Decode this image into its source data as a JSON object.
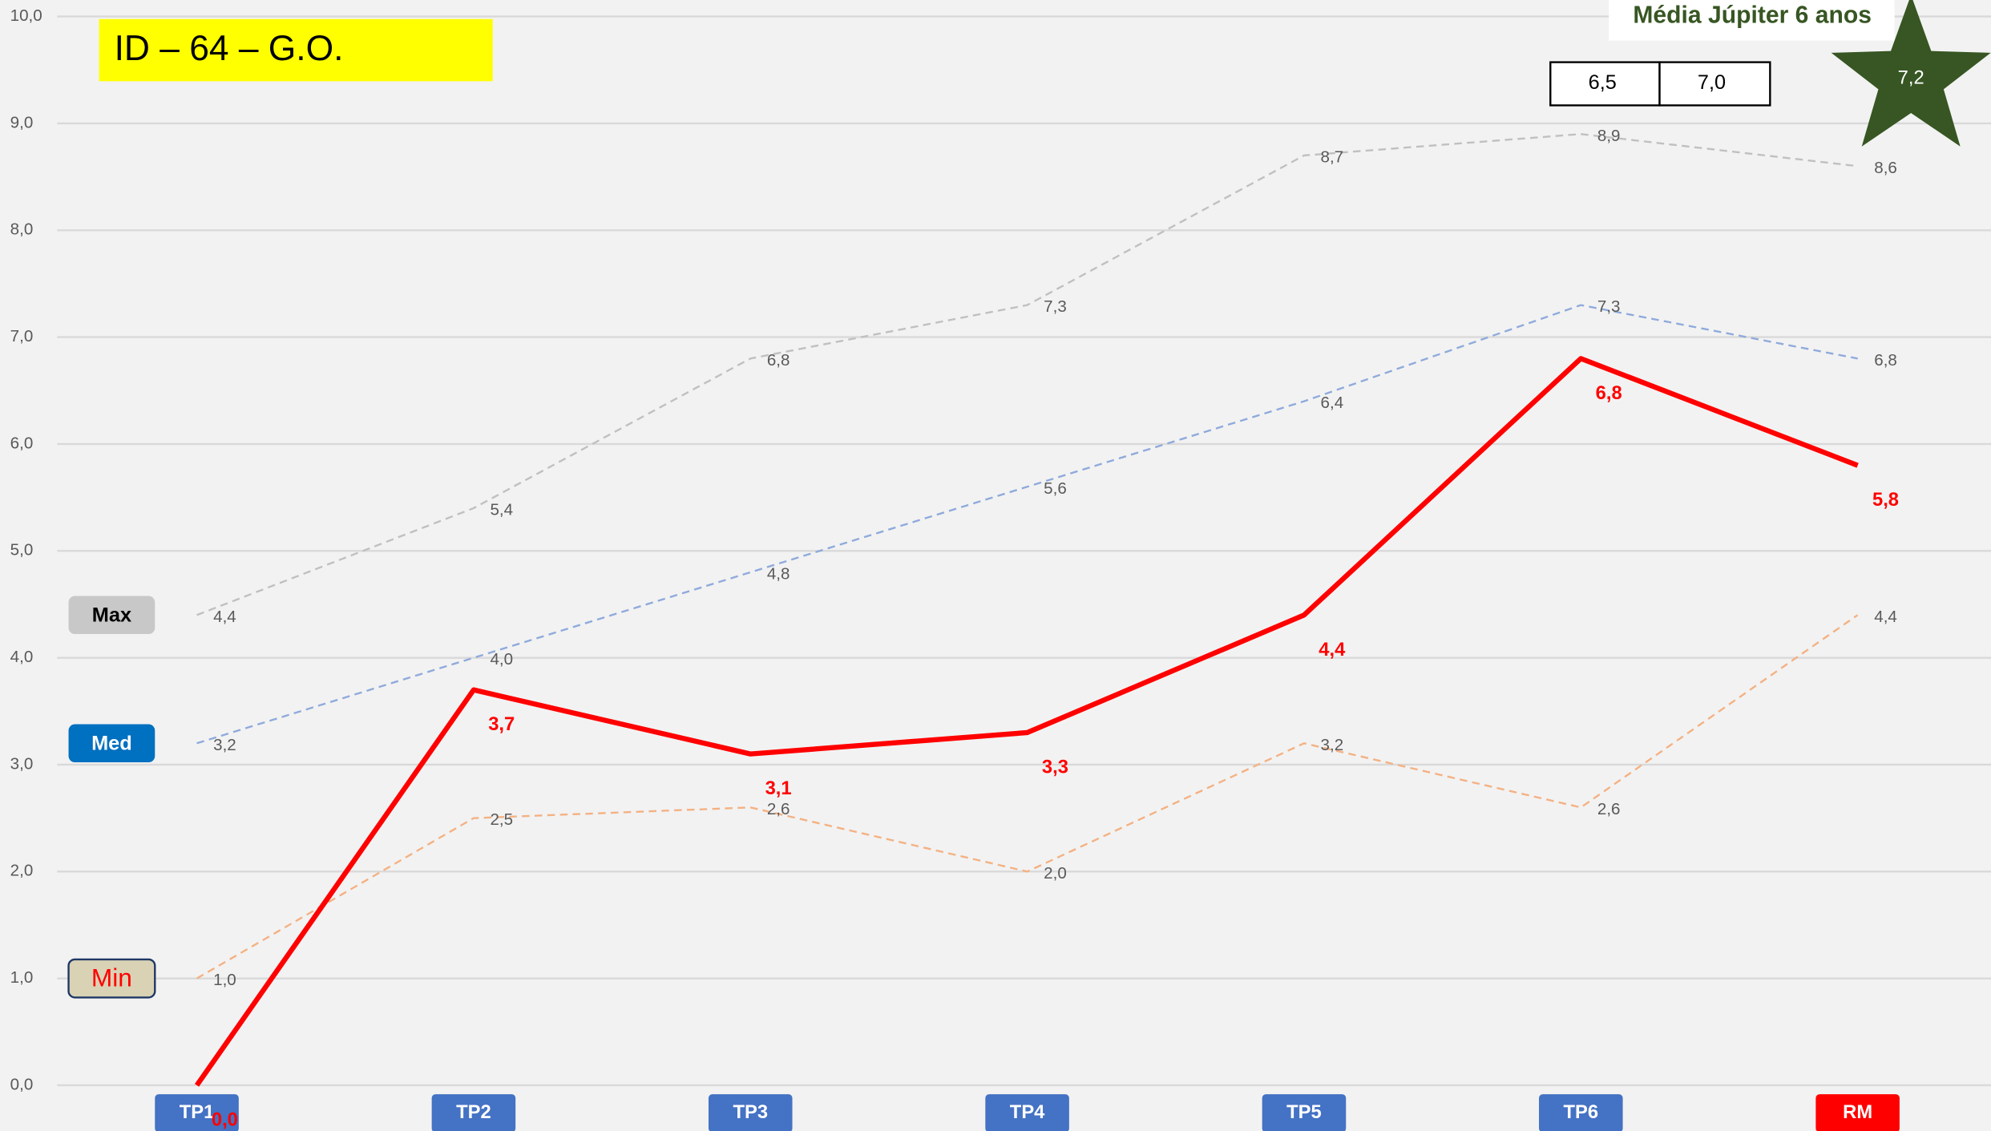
{
  "chart_data": {
    "type": "line",
    "title": "ID – 64 – G.O.",
    "categories": [
      "TP1",
      "TP2",
      "TP3",
      "TP4",
      "TP5",
      "TP6",
      "RM"
    ],
    "category_colors": [
      "#4472c4",
      "#4472c4",
      "#4472c4",
      "#4472c4",
      "#4472c4",
      "#4472c4",
      "#ff0000"
    ],
    "series": [
      {
        "name": "Max",
        "color": "#c0c0c0",
        "dashed": true,
        "values": [
          4.4,
          5.4,
          6.8,
          7.3,
          8.7,
          8.9,
          8.6
        ],
        "value_labels": [
          "4,4",
          "5,4",
          "6,8",
          "7,3",
          "8,7",
          "8,9",
          "8,6"
        ]
      },
      {
        "name": "Med",
        "color": "#8faadc",
        "dashed": true,
        "values": [
          3.2,
          4.0,
          4.8,
          5.6,
          6.4,
          7.3,
          6.8
        ],
        "value_labels": [
          "3,2",
          "4,0",
          "4,8",
          "5,6",
          "6,4",
          "7,3",
          "6,8"
        ]
      },
      {
        "name": "Min",
        "color": "#f4b183",
        "dashed": true,
        "values": [
          1.0,
          2.5,
          2.6,
          2.0,
          3.2,
          2.6,
          4.4
        ],
        "value_labels": [
          "1,0",
          "2,5",
          "2,6",
          "2,0",
          "3,2",
          "2,6",
          "4,4"
        ]
      },
      {
        "color": "#ff0000",
        "dashed": false,
        "values": [
          0.0,
          3.7,
          3.1,
          3.3,
          4.4,
          6.8,
          5.8
        ],
        "value_labels": [
          "0,0",
          "3,7",
          "3,1",
          "3,3",
          "4,4",
          "6,8",
          "5,8"
        ]
      }
    ],
    "ylim": [
      0,
      10
    ],
    "yticks": [
      {
        "value": 0,
        "label": "0,0"
      },
      {
        "value": 1,
        "label": "1,0"
      },
      {
        "value": 2,
        "label": "2,0"
      },
      {
        "value": 3,
        "label": "3,0"
      },
      {
        "value": 4,
        "label": "4,0"
      },
      {
        "value": 5,
        "label": "5,0"
      },
      {
        "value": 6,
        "label": "6,0"
      },
      {
        "value": 7,
        "label": "7,0"
      },
      {
        "value": 8,
        "label": "8,0"
      },
      {
        "value": 9,
        "label": "9,0"
      },
      {
        "value": 10,
        "label": "10,0"
      }
    ],
    "grid": true,
    "annotations": {
      "reference_title": "Média Júpiter 6 anos",
      "reference_boxes": [
        "6,5",
        "7,0"
      ],
      "reference_star": "7,2"
    }
  }
}
